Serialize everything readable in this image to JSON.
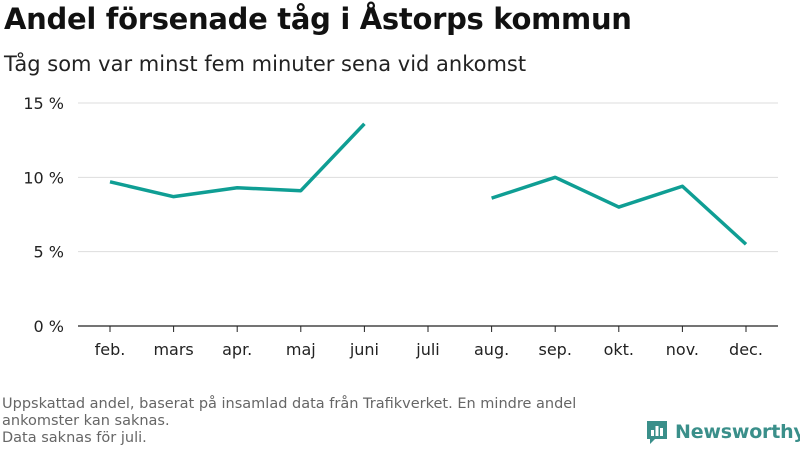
{
  "title": "Andel försenade tåg i Åstorps kommun",
  "subtitle": "Tåg som var minst fem minuter sena vid ankomst",
  "notes": [
    "Uppskattad andel, baserat på insamlad data från Trafikverket. En mindre andel",
    "ankomster kan saknas.",
    "Data saknas för juli."
  ],
  "brand": {
    "name": "Newsworthy",
    "color": "#3a8f8a",
    "icon": "bar-chart-logo-icon"
  },
  "chart_data": {
    "type": "line",
    "categories": [
      "feb.",
      "mars",
      "apr.",
      "maj",
      "juni",
      "juli",
      "aug.",
      "sep.",
      "okt.",
      "nov.",
      "dec."
    ],
    "series": [
      {
        "values": [
          9.7,
          8.7,
          9.3,
          9.1,
          13.6,
          null,
          8.6,
          10.0,
          8.0,
          9.4,
          5.5
        ]
      }
    ],
    "yticks": [
      0,
      5,
      10,
      15
    ],
    "ytick_labels": [
      "0 %",
      "5 %",
      "10 %",
      "15 %"
    ],
    "ylim": [
      0,
      15
    ],
    "grid": true,
    "line_color": "#0f9e94"
  }
}
